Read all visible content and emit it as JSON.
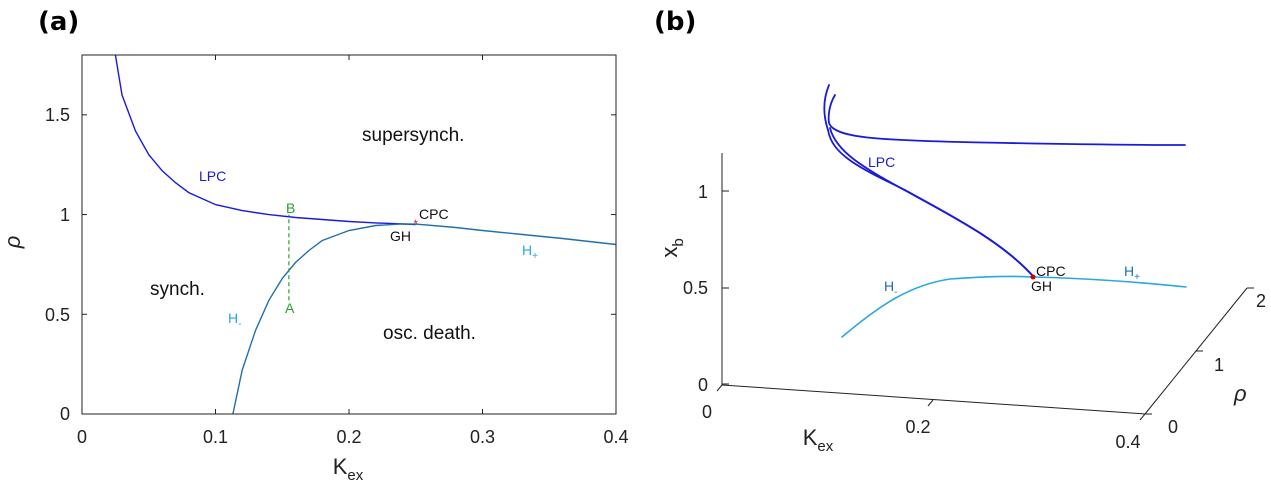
{
  "panel_a": {
    "tag": "(a)",
    "xlabel": "K",
    "xlabel_sub": "ex",
    "ylabel": "ρ",
    "xticks": [
      "0",
      "0.1",
      "0.2",
      "0.3",
      "0.4"
    ],
    "yticks": [
      "0",
      "0.5",
      "1",
      "1.5"
    ],
    "regions": {
      "supersynch": "supersynch.",
      "synch": "synch.",
      "osc_death": "osc. death."
    },
    "labels": {
      "lpc": "LPC",
      "cpc": "CPC",
      "gh": "GH",
      "h_plus": "H",
      "h_plus_sub": "+",
      "h_minus": "H",
      "h_minus_sub": "-",
      "a": "A",
      "b": "B"
    }
  },
  "panel_b": {
    "tag": "(b)",
    "xlabel": "K",
    "xlabel_sub": "ex",
    "ylabel": "ρ",
    "zlabel": "x",
    "zlabel_sub": "b",
    "xticks": [
      "0",
      "0.2",
      "0.4"
    ],
    "yticks": [
      "0",
      "1",
      "2"
    ],
    "zticks": [
      "0",
      "0.5",
      "1"
    ],
    "labels": {
      "lpc": "LPC",
      "cpc": "CPC",
      "gh": "GH",
      "h_plus": "H",
      "h_plus_sub": "+",
      "h_minus": "H",
      "h_minus_sub": "-"
    }
  },
  "colors": {
    "lpc": "#1a1adc",
    "h_minus": "#29a8e0",
    "h_plus": "#1f6fb0",
    "segment": "#2ca02c",
    "marker": "#e02020"
  },
  "chart_data": [
    {
      "type": "line",
      "panel": "a",
      "xlim": [
        0,
        0.4
      ],
      "ylim": [
        0,
        1.8
      ],
      "grid": false,
      "series": [
        {
          "name": "LPC",
          "x": [
            0.025,
            0.03,
            0.04,
            0.05,
            0.06,
            0.07,
            0.08,
            0.1,
            0.12,
            0.14,
            0.16,
            0.18,
            0.2,
            0.22,
            0.25
          ],
          "y": [
            1.8,
            1.6,
            1.42,
            1.3,
            1.22,
            1.16,
            1.11,
            1.05,
            1.02,
            1.0,
            0.985,
            0.975,
            0.965,
            0.958,
            0.95
          ]
        },
        {
          "name": "H-",
          "x": [
            0.113,
            0.12,
            0.13,
            0.14,
            0.15,
            0.16,
            0.17,
            0.18,
            0.2,
            0.22,
            0.24,
            0.25
          ],
          "y": [
            0.0,
            0.22,
            0.42,
            0.57,
            0.68,
            0.76,
            0.82,
            0.87,
            0.92,
            0.945,
            0.953,
            0.952
          ]
        },
        {
          "name": "H+",
          "x": [
            0.25,
            0.28,
            0.3,
            0.33,
            0.36,
            0.4
          ],
          "y": [
            0.952,
            0.935,
            0.92,
            0.9,
            0.88,
            0.85
          ]
        },
        {
          "name": "A-B",
          "x": [
            0.155,
            0.155
          ],
          "y": [
            0.57,
            1.0
          ]
        }
      ],
      "points": [
        {
          "name": "CPC",
          "x": 0.25,
          "y": 0.952
        }
      ]
    },
    {
      "type": "line",
      "panel": "b",
      "xlim": [
        0,
        0.4
      ],
      "ylim": [
        0,
        2
      ],
      "zlim": [
        0,
        1.2
      ],
      "grid": false
    }
  ]
}
